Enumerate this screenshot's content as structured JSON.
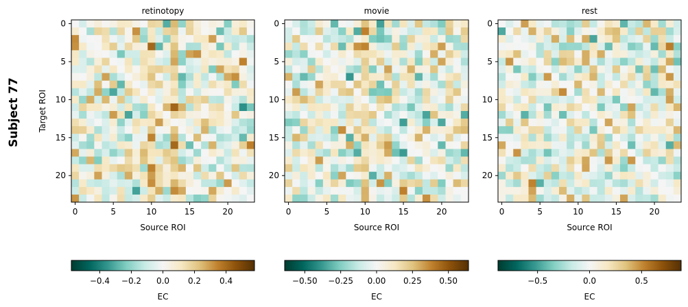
{
  "figure": {
    "row_label": "Subject 77"
  },
  "chart_data": [
    {
      "type": "heatmap",
      "title": "retinotopy",
      "xlabel": "Source ROI",
      "ylabel": "Target ROI",
      "n": 24,
      "x_ticks": [
        0,
        5,
        10,
        15,
        20
      ],
      "y_ticks": [
        0,
        5,
        10,
        15,
        20
      ],
      "colormap": "BrBG_r",
      "vmin": -0.58,
      "vmax": 0.58,
      "colorbar_ticks": [
        -0.4,
        -0.2,
        0.0,
        0.2,
        0.4
      ],
      "colorbar_tick_labels": [
        "−0.4",
        "−0.2",
        "0.0",
        "0.2",
        "0.4"
      ],
      "colorbar_label": "EC",
      "seed": 77,
      "hot_columns": [
        10,
        13
      ]
    },
    {
      "type": "heatmap",
      "title": "movie",
      "xlabel": "Source ROI",
      "ylabel": "",
      "n": 24,
      "x_ticks": [
        0,
        5,
        10,
        15,
        20
      ],
      "y_ticks": [
        0,
        5,
        10,
        15,
        20
      ],
      "colormap": "BrBG_r",
      "vmin": -0.64,
      "vmax": 0.64,
      "colorbar_ticks": [
        -0.5,
        -0.25,
        0.0,
        0.25,
        0.5
      ],
      "colorbar_tick_labels": [
        "−0.50",
        "−0.25",
        "0.00",
        "0.25",
        "0.50"
      ],
      "colorbar_label": "EC",
      "seed": 177,
      "hot_columns": [
        10
      ]
    },
    {
      "type": "heatmap",
      "title": "rest",
      "xlabel": "Source ROI",
      "ylabel": "",
      "n": 24,
      "x_ticks": [
        0,
        5,
        10,
        15,
        20
      ],
      "y_ticks": [
        0,
        5,
        10,
        15,
        20
      ],
      "colormap": "BrBG_r",
      "vmin": -0.88,
      "vmax": 0.88,
      "colorbar_ticks": [
        -0.5,
        0.0,
        0.5
      ],
      "colorbar_tick_labels": [
        "−0.5",
        "0.0",
        "0.5"
      ],
      "colorbar_label": "EC",
      "seed": 277,
      "hot_columns": []
    }
  ]
}
